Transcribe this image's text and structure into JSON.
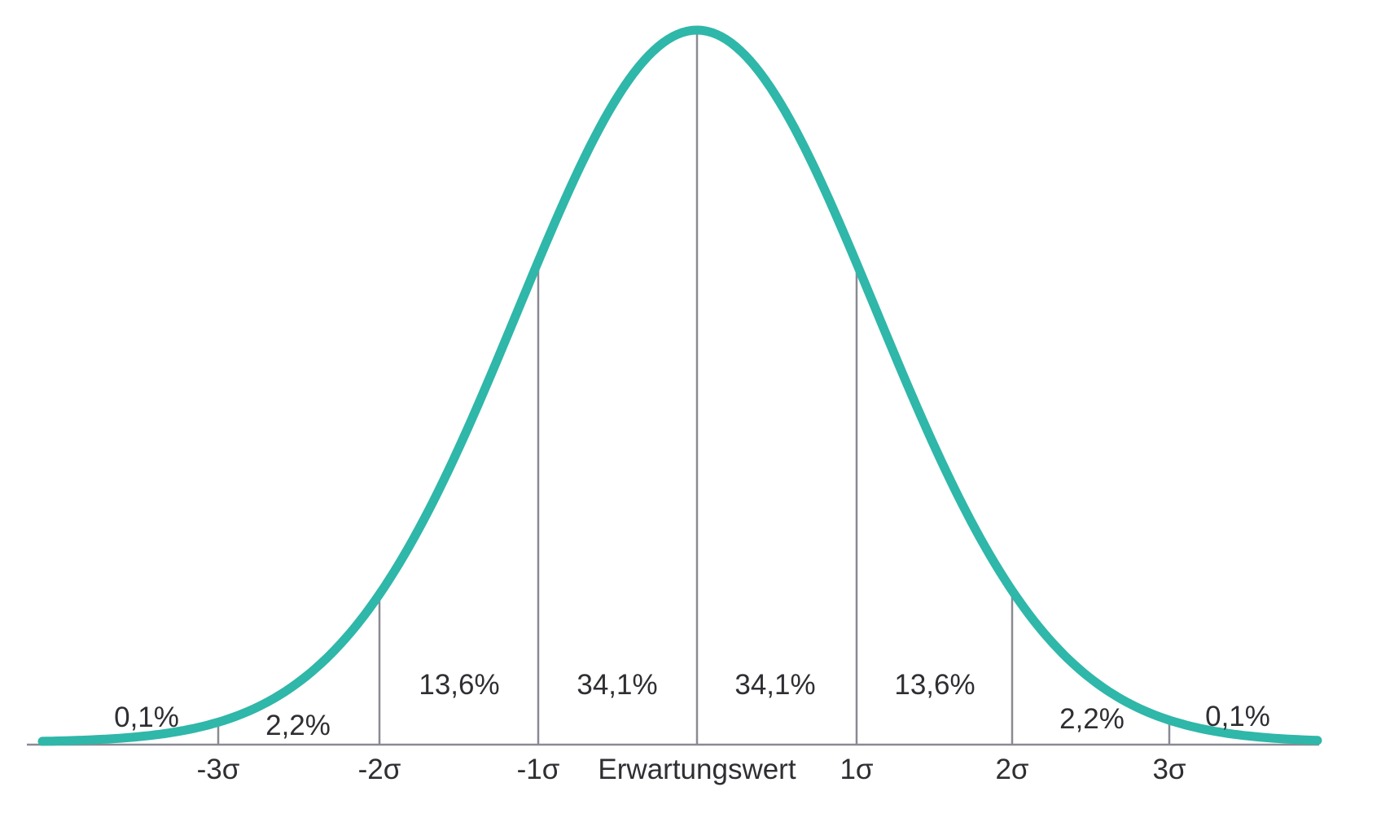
{
  "chart_data": {
    "type": "line",
    "curve": "normal-distribution-bell-curve",
    "title": "",
    "xlabel": "",
    "ylabel": "",
    "legend": "none",
    "grid": "vertical-lines-at-sigma-marks",
    "x_axis": {
      "tick_labels": [
        "-3σ",
        "-2σ",
        "-1σ",
        "Erwartungswert",
        "1σ",
        "2σ",
        "3σ"
      ],
      "tick_values_sigma": [
        -3,
        -2,
        -1,
        0,
        1,
        2,
        3
      ]
    },
    "mean_label": "Erwartungswert",
    "segments": [
      {
        "label": "0,1%",
        "value_percent": 0.1,
        "range_sigma": "below -3σ"
      },
      {
        "label": "2,2%",
        "value_percent": 2.2,
        "range_sigma": "-3σ to -2σ"
      },
      {
        "label": "13,6%",
        "value_percent": 13.6,
        "range_sigma": "-2σ to -1σ"
      },
      {
        "label": "34,1%",
        "value_percent": 34.1,
        "range_sigma": "-1σ to mean"
      },
      {
        "label": "34,1%",
        "value_percent": 34.1,
        "range_sigma": "mean to 1σ"
      },
      {
        "label": "13,6%",
        "value_percent": 13.6,
        "range_sigma": "1σ to 2σ"
      },
      {
        "label": "2,2%",
        "value_percent": 2.2,
        "range_sigma": "2σ to 3σ"
      },
      {
        "label": "0,1%",
        "value_percent": 0.1,
        "range_sigma": "above 3σ"
      }
    ],
    "colors": {
      "curve": "#2fb7a9",
      "grid_lines": "#898a94",
      "axis": "#898a94",
      "text": "#2e2e33",
      "background": "#ffffff"
    }
  }
}
